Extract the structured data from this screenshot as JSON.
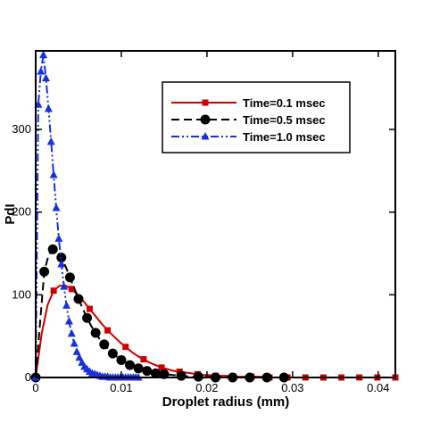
{
  "chart_data": {
    "type": "line",
    "title": "",
    "xlabel": "Droplet radius (mm)",
    "ylabel": "PdI",
    "xlim": [
      0,
      0.042
    ],
    "ylim": [
      0,
      395
    ],
    "x_ticks": [
      0,
      0.01,
      0.02,
      0.03,
      0.04
    ],
    "x_tick_labels": [
      "0",
      "0.01",
      "0.02",
      "0.03",
      "0.04"
    ],
    "y_ticks": [
      0,
      100,
      200,
      300
    ],
    "y_tick_labels": [
      "0",
      "100",
      "200",
      "300"
    ],
    "grid": false,
    "legend_position": "top-right",
    "series": [
      {
        "name": "Time=0.1 msec",
        "color": "#cc0000",
        "line_style": "solid",
        "marker": "square",
        "x": [
          0,
          0.0007,
          0.0014,
          0.0021,
          0.0028,
          0.0035,
          0.0042,
          0.0049,
          0.0056,
          0.0063,
          0.007,
          0.0077,
          0.0084,
          0.0091,
          0.0098,
          0.0105,
          0.0112,
          0.0119,
          0.0126,
          0.0133,
          0.014,
          0.0147,
          0.0154,
          0.0161,
          0.0168,
          0.0175,
          0.0182,
          0.0189,
          0.0196,
          0.0203,
          0.021,
          0.0217,
          0.0224,
          0.0231,
          0.0238,
          0.0245,
          0.0252,
          0.0259,
          0.0266,
          0.0273,
          0.028,
          0.0287,
          0.0294,
          0.0301,
          0.0308,
          0.0315,
          0.0322,
          0.0329,
          0.0336,
          0.0343,
          0.035,
          0.0357,
          0.0364,
          0.0371,
          0.0378,
          0.0385,
          0.0392,
          0.0399,
          0.0406,
          0.0413,
          0.042
        ],
        "y": [
          0,
          53,
          88,
          105,
          111,
          111,
          107,
          100,
          92,
          83,
          74,
          65,
          57,
          50,
          43,
          37,
          31,
          26,
          22,
          18,
          15,
          12,
          10,
          8,
          7,
          6,
          5,
          4,
          3,
          3,
          2,
          2,
          2,
          1,
          1,
          1,
          1,
          1,
          1,
          0,
          0,
          0,
          0,
          0,
          0,
          0,
          0,
          0,
          0,
          0,
          0,
          0,
          0,
          0,
          0,
          0,
          0,
          0,
          0,
          0,
          0
        ],
        "marker_every": 3
      },
      {
        "name": "Time=0.5 msec",
        "color": "#000000",
        "line_style": "dashed",
        "marker": "circle",
        "x": [
          0,
          0.0005,
          0.001,
          0.0015,
          0.002,
          0.0025,
          0.003,
          0.0035,
          0.004,
          0.0045,
          0.005,
          0.0055,
          0.006,
          0.0065,
          0.007,
          0.0075,
          0.008,
          0.0085,
          0.009,
          0.0095,
          0.01,
          0.0105,
          0.011,
          0.0115,
          0.012,
          0.0125,
          0.013,
          0.0135,
          0.014,
          0.0145,
          0.015,
          0.016,
          0.017,
          0.018,
          0.019,
          0.02,
          0.021,
          0.022,
          0.023,
          0.024,
          0.025,
          0.026,
          0.027,
          0.028,
          0.029,
          0.03
        ],
        "y": [
          0,
          65,
          128,
          148,
          155,
          152,
          145,
          134,
          121,
          108,
          95,
          83,
          72,
          62,
          54,
          46,
          40,
          34,
          29,
          25,
          21,
          18,
          15,
          13,
          11,
          9,
          8,
          6,
          5,
          4,
          4,
          3,
          2,
          1,
          1,
          1,
          0,
          0,
          0,
          0,
          0,
          0,
          0,
          0,
          0,
          0
        ],
        "marker_every": 2
      },
      {
        "name": "Time=1.0 msec",
        "color": "#1a2fe0",
        "line_style": "dash-dot-dot",
        "marker": "triangle",
        "x": [
          0,
          0.0003,
          0.0006,
          0.0009,
          0.0012,
          0.0015,
          0.0018,
          0.0021,
          0.0024,
          0.0027,
          0.003,
          0.0033,
          0.0036,
          0.0039,
          0.0042,
          0.0045,
          0.0048,
          0.0051,
          0.0054,
          0.0057,
          0.006,
          0.0063,
          0.0066,
          0.0069,
          0.0072,
          0.0075,
          0.0078,
          0.0081,
          0.0084,
          0.0087,
          0.009,
          0.0093,
          0.0096,
          0.0099,
          0.0102,
          0.0105,
          0.0108,
          0.0111,
          0.0114,
          0.0117,
          0.012
        ],
        "y": [
          0,
          330,
          370,
          390,
          362,
          325,
          285,
          245,
          205,
          168,
          137,
          110,
          87,
          68,
          53,
          41,
          31,
          24,
          18,
          13,
          10,
          7,
          5,
          4,
          3,
          2,
          1,
          1,
          1,
          0,
          0,
          0,
          0,
          0,
          0,
          0,
          0,
          0,
          0,
          0,
          0
        ],
        "marker_every": 1
      }
    ]
  }
}
